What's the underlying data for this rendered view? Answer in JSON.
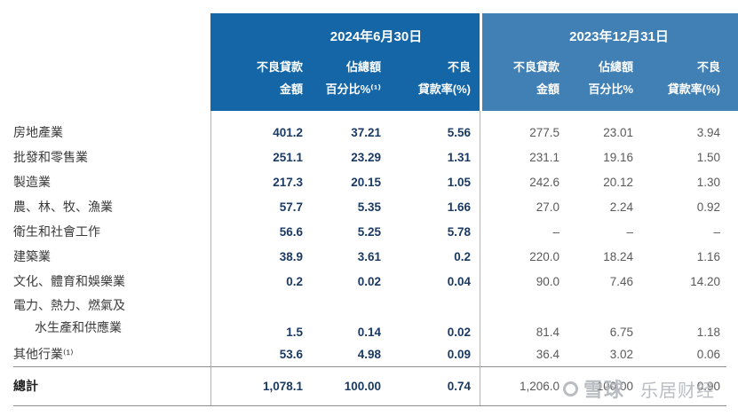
{
  "colors": {
    "header_dark_blue": "#1566a6",
    "header_light_blue": "#4080b4",
    "data_2024_text": "#1a3a64",
    "data_2023_text": "#5a5a5a",
    "label_text": "#3a3a3a",
    "rule": "#8f8f8f",
    "vline": "#b3b3b3",
    "watermark": "#b2b6bc"
  },
  "header": {
    "period_2024": {
      "title": "2024年6月30日",
      "columns": [
        {
          "line1": "不良貸款",
          "line2": "金額"
        },
        {
          "line1": "佔總額",
          "line2": "百分比%⁽¹⁾"
        },
        {
          "line1": "不良",
          "line2": "貸款率(%)"
        }
      ]
    },
    "period_2023": {
      "title": "2023年12月31日",
      "columns": [
        {
          "line1": "不良貸款",
          "line2": "金額"
        },
        {
          "line1": "佔總額",
          "line2": "百分比%"
        },
        {
          "line1": "不良",
          "line2": "貸款率(%)"
        }
      ]
    }
  },
  "table": {
    "rows": [
      {
        "label": "房地產業",
        "v2024": [
          "401.2",
          "37.21",
          "5.56"
        ],
        "v2023": [
          "277.5",
          "23.01",
          "3.94"
        ]
      },
      {
        "label": "批發和零售業",
        "v2024": [
          "251.1",
          "23.29",
          "1.31"
        ],
        "v2023": [
          "231.1",
          "19.16",
          "1.50"
        ]
      },
      {
        "label": "製造業",
        "v2024": [
          "217.3",
          "20.15",
          "1.05"
        ],
        "v2023": [
          "242.6",
          "20.12",
          "1.30"
        ]
      },
      {
        "label": "農、林、牧、漁業",
        "v2024": [
          "57.7",
          "5.35",
          "1.66"
        ],
        "v2023": [
          "27.0",
          "2.24",
          "0.92"
        ]
      },
      {
        "label": "衛生和社會工作",
        "v2024": [
          "56.6",
          "5.25",
          "5.78"
        ],
        "v2023": [
          "–",
          "–",
          "–"
        ]
      },
      {
        "label": "建築業",
        "v2024": [
          "38.9",
          "3.61",
          "0.2"
        ],
        "v2023": [
          "220.0",
          "18.24",
          "1.16"
        ]
      },
      {
        "label": "文化、體育和娛樂業",
        "v2024": [
          "0.2",
          "0.02",
          "0.04"
        ],
        "v2023": [
          "90.0",
          "7.46",
          "14.20"
        ]
      },
      {
        "label": "電力、熱力、燃氣及",
        "label2": "水生產和供應業",
        "v2024": [
          "1.5",
          "0.14",
          "0.02"
        ],
        "v2023": [
          "81.4",
          "6.75",
          "1.18"
        ]
      },
      {
        "label": "其他行業⁽¹⁾",
        "v2024": [
          "53.6",
          "4.98",
          "0.09"
        ],
        "v2023": [
          "36.4",
          "3.02",
          "0.06"
        ]
      }
    ],
    "total": {
      "label": "總計",
      "v2024": [
        "1,078.1",
        "100.00",
        "0.74"
      ],
      "v2023": [
        "1,206.0",
        "100.00",
        "0.90"
      ]
    }
  },
  "watermark": {
    "brand": "雪球",
    "site": "乐居财经"
  }
}
